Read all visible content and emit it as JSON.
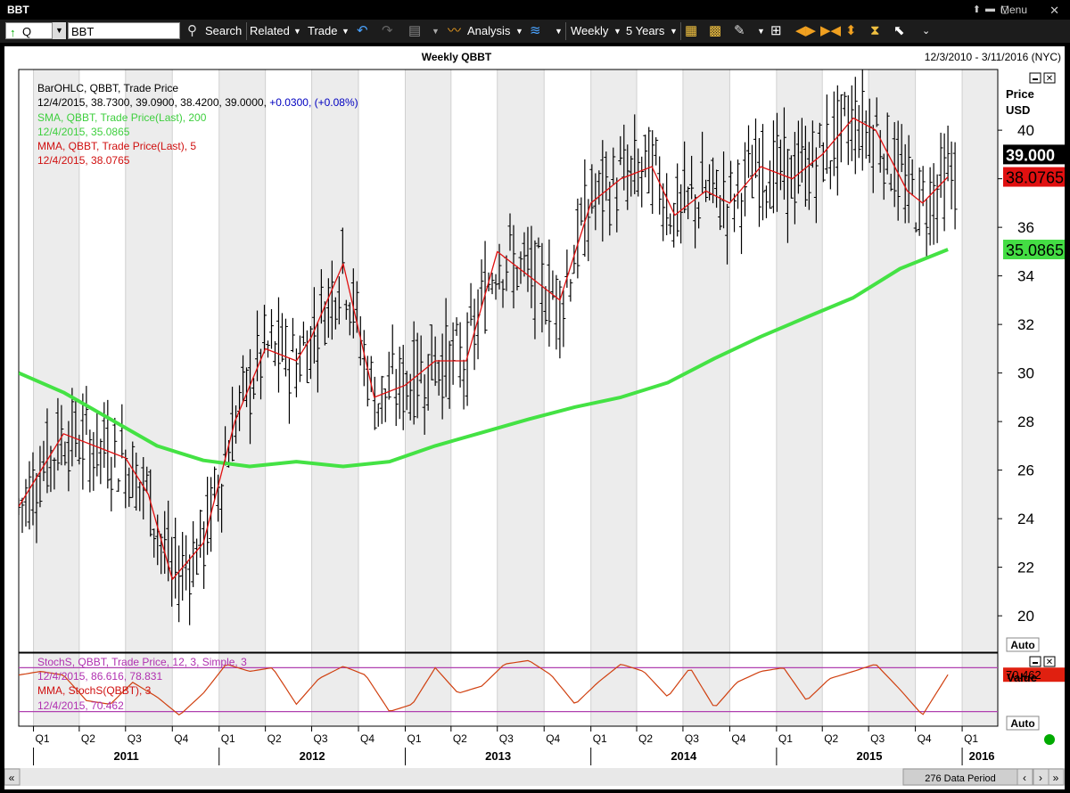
{
  "window": {
    "title": "BBT",
    "menu_label": "Menu"
  },
  "toolbar": {
    "symbol_type": "Q",
    "symbol_value": "BBT",
    "search_label": "Search",
    "related_label": "Related",
    "trade_label": "Trade",
    "analysis_label": "Analysis",
    "period_label": "Weekly",
    "range_label": "5 Years"
  },
  "chart": {
    "title": "Weekly QBBT",
    "date_range": "12/3/2010 - 3/11/2016 (NYC)",
    "price_axis_label_1": "Price",
    "price_axis_label_2": "USD",
    "value_axis_label": "Value",
    "auto_label": "Auto",
    "data_period": "276 Data Period",
    "legend": [
      {
        "text_a": "BarOHLC, QBBT, Trade Price",
        "color": "#000000"
      },
      {
        "text_a": "12/4/2015, 38.7300, 39.0900, 38.4200, 39.0000, ",
        "text_b": "+0.0300, (+0.08%)",
        "color": "#000000",
        "color_b": "#0000c0"
      },
      {
        "text_a": "SMA, QBBT, Trade Price(Last), 200",
        "color": "#3ecf3e"
      },
      {
        "text_a": "12/4/2015, 35.0865",
        "color": "#3ecf3e"
      },
      {
        "text_a": "MMA, QBBT, Trade Price(Last), 5",
        "color": "#d01010"
      },
      {
        "text_a": "12/4/2015, 38.0765",
        "color": "#d01010"
      }
    ],
    "stoch_legend": [
      {
        "text_a": "StochS, QBBT, Trade Price, 12, 3, Simple, 3",
        "color": "#b030b0"
      },
      {
        "text_a": "12/4/2015, 86.616, 78.831",
        "color": "#b030b0"
      },
      {
        "text_a": "MMA, StochS(QBBT), 3",
        "color": "#d01010"
      },
      {
        "text_a": "12/4/2015, 70.462",
        "color": "#b030b0"
      }
    ],
    "price_badges": [
      {
        "value": "39.000",
        "bg": "#000000",
        "fg": "#ffffff"
      },
      {
        "value": "38.0765",
        "bg": "#e01010",
        "fg": "#000000"
      },
      {
        "value": "35.0865",
        "bg": "#44dd44",
        "fg": "#000000"
      }
    ],
    "stoch_badge": {
      "value": "70.462",
      "bg": "#e02010",
      "fg": "#000000"
    }
  },
  "chart_data": {
    "type": "line",
    "title": "Weekly QBBT",
    "ylabel": "Price USD",
    "ylim": [
      18.5,
      42.5
    ],
    "y_ticks": [
      20,
      22,
      24,
      26,
      28,
      30,
      32,
      34,
      36,
      38,
      40
    ],
    "x_ticks": [
      "Q1",
      "Q2",
      "Q3",
      "Q4",
      "Q1",
      "Q2",
      "Q3",
      "Q4",
      "Q1",
      "Q2",
      "Q3",
      "Q4",
      "Q1",
      "Q2",
      "Q3",
      "Q4",
      "Q1",
      "Q2",
      "Q3",
      "Q4",
      "Q1",
      "Q2",
      "Q3",
      "Q4",
      "Q1"
    ],
    "year_labels": [
      "2011",
      "2012",
      "2013",
      "2014",
      "2015",
      "2016"
    ],
    "grid": true,
    "x_range": [
      "2010-12-03",
      "2016-03-11"
    ],
    "series": [
      {
        "name": "SMA, QBBT, Trade Price(Last), 200",
        "color": "#44e244",
        "x": [
          "2010-12-03",
          "2011-03-01",
          "2011-06-01",
          "2011-09-01",
          "2011-12-01",
          "2012-03-01",
          "2012-06-01",
          "2012-09-01",
          "2012-12-01",
          "2013-03-01",
          "2013-06-01",
          "2013-09-01",
          "2013-12-01",
          "2014-03-01",
          "2014-06-01",
          "2014-09-01",
          "2014-12-01",
          "2015-03-01",
          "2015-06-01",
          "2015-09-01",
          "2015-12-04"
        ],
        "values": [
          30.0,
          29.2,
          28.1,
          27.0,
          26.4,
          26.15,
          26.35,
          26.15,
          26.35,
          27.0,
          27.55,
          28.1,
          28.6,
          29.0,
          29.6,
          30.6,
          31.5,
          32.3,
          33.1,
          34.3,
          35.0865
        ]
      },
      {
        "name": "MMA, QBBT, Trade Price(Last), 5",
        "color": "#e01010",
        "x": [
          "2010-12-03",
          "2011-03-01",
          "2011-05-01",
          "2011-07-01",
          "2011-08-15",
          "2011-10-01",
          "2011-12-01",
          "2012-02-01",
          "2012-04-01",
          "2012-06-01",
          "2012-07-01",
          "2012-09-01",
          "2012-11-01",
          "2013-01-01",
          "2013-03-01",
          "2013-05-01",
          "2013-07-01",
          "2013-09-01",
          "2013-11-01",
          "2014-01-01",
          "2014-03-01",
          "2014-05-01",
          "2014-06-15",
          "2014-08-15",
          "2014-10-01",
          "2014-12-01",
          "2015-02-01",
          "2015-04-01",
          "2015-06-01",
          "2015-07-15",
          "2015-09-15",
          "2015-10-15",
          "2015-12-04"
        ],
        "values": [
          24.5,
          27.5,
          27.0,
          26.5,
          25.0,
          21.5,
          23.0,
          28.0,
          31.0,
          30.5,
          31.5,
          34.5,
          29.0,
          29.5,
          30.5,
          30.5,
          35.0,
          34.0,
          33.0,
          37.0,
          38.0,
          38.5,
          36.5,
          37.5,
          37.0,
          38.5,
          38.0,
          39.0,
          40.5,
          40.0,
          37.5,
          37.0,
          38.0765
        ]
      }
    ]
  },
  "stoch_data": {
    "type": "line",
    "name": "MMA, StochS(QBBT), 3",
    "ylim": [
      0,
      100
    ],
    "bands": [
      80,
      20
    ],
    "x": [
      "2010-12-03",
      "2011-01-15",
      "2011-03-01",
      "2011-04-15",
      "2011-06-01",
      "2011-07-15",
      "2011-09-01",
      "2011-10-15",
      "2011-12-01",
      "2012-01-15",
      "2012-03-01",
      "2012-04-15",
      "2012-06-01",
      "2012-07-15",
      "2012-09-01",
      "2012-10-15",
      "2012-12-01",
      "2013-01-15",
      "2013-03-01",
      "2013-04-15",
      "2013-06-01",
      "2013-07-15",
      "2013-09-01",
      "2013-10-15",
      "2013-12-01",
      "2014-01-15",
      "2014-03-01",
      "2014-04-15",
      "2014-06-01",
      "2014-07-15",
      "2014-09-01",
      "2014-10-15",
      "2014-12-01",
      "2015-01-15",
      "2015-03-01",
      "2015-04-15",
      "2015-06-01",
      "2015-07-15",
      "2015-09-01",
      "2015-10-15",
      "2015-12-04"
    ],
    "values": [
      70,
      75,
      70,
      35,
      30,
      60,
      40,
      15,
      45,
      85,
      75,
      80,
      30,
      65,
      82,
      70,
      20,
      30,
      80,
      45,
      55,
      85,
      90,
      70,
      30,
      60,
      85,
      75,
      40,
      80,
      25,
      60,
      75,
      80,
      35,
      65,
      75,
      85,
      50,
      15,
      70.462
    ]
  }
}
